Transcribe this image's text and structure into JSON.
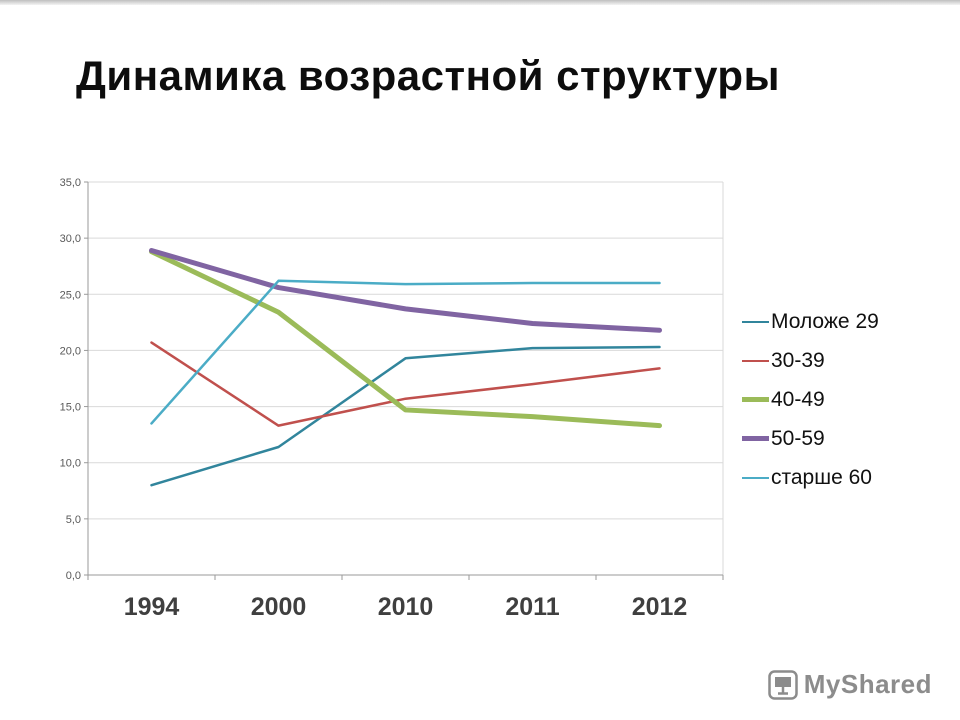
{
  "slide": {
    "title": "Динамика возрастной структуры"
  },
  "chart_data": {
    "type": "line",
    "title": "Динамика возрастной структуры",
    "categories": [
      "1994",
      "2000",
      "2010",
      "2011",
      "2012"
    ],
    "series": [
      {
        "name": "Моложе 29",
        "color": "#31859C",
        "stroke_width": 2.5,
        "values": [
          8.0,
          11.4,
          19.3,
          20.2,
          20.3
        ]
      },
      {
        "name": "30-39",
        "color": "#C0504D",
        "stroke_width": 2.5,
        "values": [
          20.7,
          13.3,
          15.7,
          17.0,
          18.4
        ]
      },
      {
        "name": "40-49",
        "color": "#9BBB59",
        "stroke_width": 5,
        "values": [
          28.8,
          23.4,
          14.7,
          14.1,
          13.3
        ]
      },
      {
        "name": "50-59",
        "color": "#8064A2",
        "stroke_width": 5,
        "values": [
          28.9,
          25.6,
          23.7,
          22.4,
          21.8
        ]
      },
      {
        "name": "старше 60",
        "color": "#4BACC6",
        "stroke_width": 2.5,
        "values": [
          13.5,
          26.2,
          25.9,
          26.0,
          26.0
        ]
      }
    ],
    "ylim": [
      0,
      35
    ],
    "y_tick_step": 5,
    "y_tick_labels": [
      "0,0",
      "5,0",
      "10,0",
      "15,0",
      "20,0",
      "25,0",
      "30,0",
      "35,0"
    ],
    "grid": true,
    "legend_position": "right",
    "axis_color": "#9a9a9a",
    "grid_color": "#D9D9D9",
    "x_label_color": "#3F3F3F",
    "y_label_color": "#595959"
  },
  "footer": {
    "logo_text": "MyShared"
  }
}
